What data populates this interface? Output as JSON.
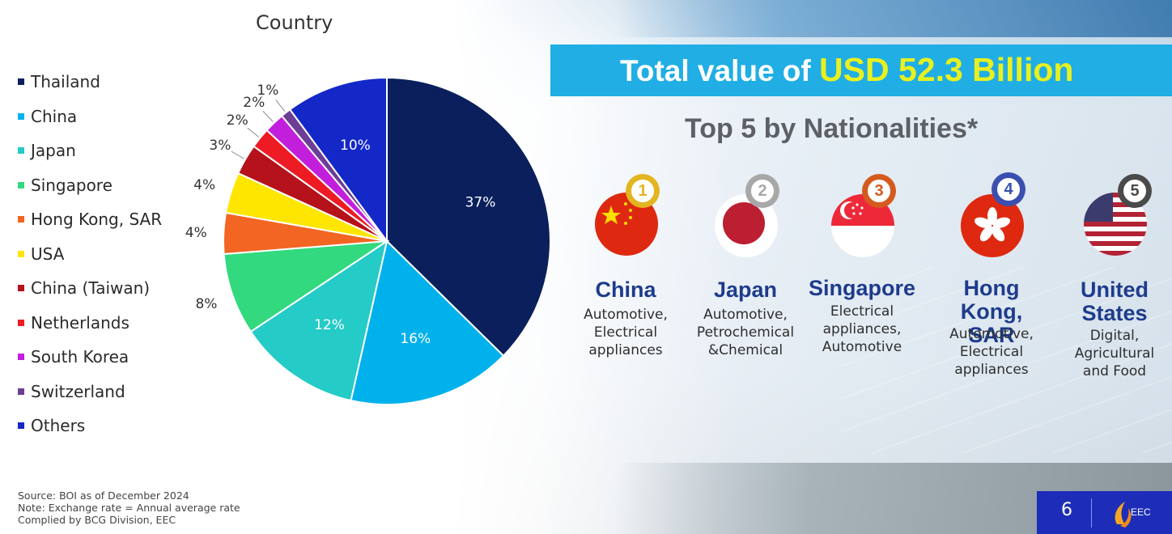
{
  "chart_data": {
    "type": "pie",
    "title": "Country",
    "categories": [
      "Thailand",
      "China",
      "Japan",
      "Singapore",
      "Hong Kong, SAR",
      "USA",
      "China (Taiwan)",
      "Netherlands",
      "South Korea",
      "Switzerland",
      "Others"
    ],
    "values": [
      37,
      16,
      12,
      8,
      4,
      4,
      3,
      2,
      2,
      1,
      10
    ],
    "data_labels": [
      "37%",
      "16%",
      "12%",
      "8%",
      "4%",
      "4%",
      "3%",
      "2%",
      "2%",
      "1%",
      "10%"
    ],
    "colors": [
      "#0a1f5c",
      "#00b1ec",
      "#25cbc6",
      "#32d97e",
      "#f26522",
      "#ffe600",
      "#b5121b",
      "#ed1c24",
      "#c21fdc",
      "#6c3e96",
      "#1428c8"
    ],
    "legend_position": "left"
  },
  "header": {
    "banner_prefix": "Total value of ",
    "banner_highlight": "USD 52.3 Billion",
    "subtitle": "Top 5 by Nationalities*"
  },
  "nationalities": [
    {
      "rank": "1",
      "name_lines": [
        "China"
      ],
      "sector_lines": [
        "Automotive,",
        "Electrical",
        "appliances"
      ],
      "flag_icon": "china-flag-icon",
      "medal_color": "#e3b521"
    },
    {
      "rank": "2",
      "name_lines": [
        "Japan"
      ],
      "sector_lines": [
        "Automotive,",
        "Petrochemical",
        "&Chemical"
      ],
      "flag_icon": "japan-flag-icon",
      "medal_color": "#a8a8a8"
    },
    {
      "rank": "3",
      "name_lines": [
        "Singapore"
      ],
      "sector_lines": [
        "Electrical",
        "appliances,",
        "Automotive"
      ],
      "flag_icon": "singapore-flag-icon",
      "medal_color": "#d45a1e"
    },
    {
      "rank": "4",
      "name_lines": [
        "Hong Kong,",
        "SAR"
      ],
      "sector_lines": [
        "Automotive,",
        "Electrical",
        "appliances"
      ],
      "flag_icon": "hong-kong-flag-icon",
      "medal_color": "#3b4fb0"
    },
    {
      "rank": "5",
      "name_lines": [
        "United",
        "States"
      ],
      "sector_lines": [
        "Digital,",
        "Agricultural",
        "and Food"
      ],
      "flag_icon": "usa-flag-icon",
      "medal_color": "#4a4a4a"
    }
  ],
  "footnotes": [
    "Source: BOI as of December 2024",
    "Note: Exchange rate = Annual average rate",
    "Complied by BCG Division, EEC"
  ],
  "footer": {
    "page_number": "6",
    "logo_text": "EEC"
  }
}
